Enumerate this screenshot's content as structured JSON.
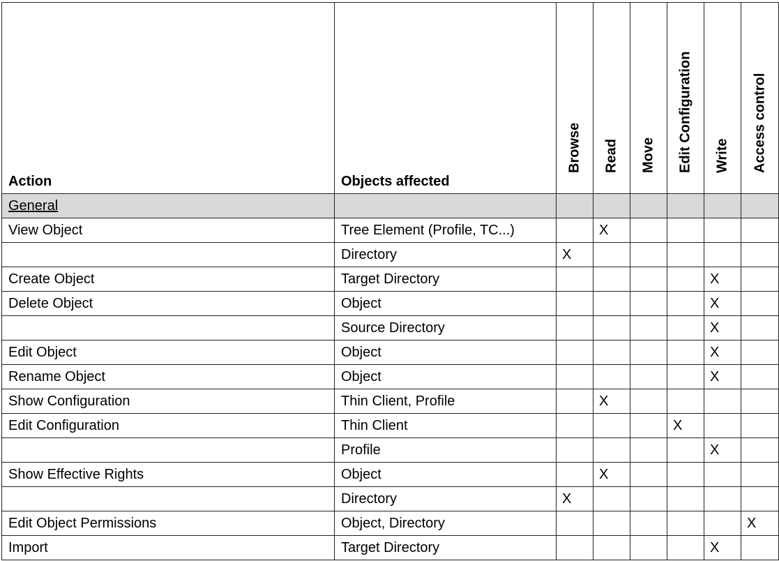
{
  "headers": {
    "action": "Action",
    "objects": "Objects affected",
    "rights": [
      "Browse",
      "Read",
      "Move",
      "Edit Configuration",
      "Write",
      "Access control"
    ]
  },
  "section": {
    "label": "General"
  },
  "rows": [
    {
      "action": "View Object",
      "object": "Tree Element (Profile, TC...)",
      "marks": [
        "",
        "X",
        "",
        "",
        "",
        ""
      ]
    },
    {
      "action": "",
      "object": "Directory",
      "marks": [
        "X",
        "",
        "",
        "",
        "",
        ""
      ]
    },
    {
      "action": "Create Object",
      "object": "Target Directory",
      "marks": [
        "",
        "",
        "",
        "",
        "X",
        ""
      ]
    },
    {
      "action": "Delete Object",
      "object": "Object",
      "marks": [
        "",
        "",
        "",
        "",
        "X",
        ""
      ]
    },
    {
      "action": "",
      "object": "Source Directory",
      "marks": [
        "",
        "",
        "",
        "",
        "X",
        ""
      ]
    },
    {
      "action": "Edit Object",
      "object": "Object",
      "marks": [
        "",
        "",
        "",
        "",
        "X",
        ""
      ]
    },
    {
      "action": "Rename Object",
      "object": "Object",
      "marks": [
        "",
        "",
        "",
        "",
        "X",
        ""
      ]
    },
    {
      "action": "Show Configuration",
      "object": "Thin Client, Profile",
      "marks": [
        "",
        "X",
        "",
        "",
        "",
        ""
      ]
    },
    {
      "action": "Edit Configuration",
      "object": "Thin Client",
      "marks": [
        "",
        "",
        "",
        "X",
        "",
        ""
      ]
    },
    {
      "action": "",
      "object": "Profile",
      "marks": [
        "",
        "",
        "",
        "",
        "X",
        ""
      ]
    },
    {
      "action": "Show Effective Rights",
      "object": "Object",
      "marks": [
        "",
        "X",
        "",
        "",
        "",
        ""
      ]
    },
    {
      "action": "",
      "object": "Directory",
      "marks": [
        "X",
        "",
        "",
        "",
        "",
        ""
      ]
    },
    {
      "action": "Edit Object Permissions",
      "object": "Object, Directory",
      "marks": [
        "",
        "",
        "",
        "",
        "",
        "X"
      ]
    },
    {
      "action": "Import",
      "object": "Target Directory",
      "marks": [
        "",
        "",
        "",
        "",
        "X",
        ""
      ]
    }
  ],
  "colors": {
    "section_bg": "#d9d9d9",
    "border": "#222222"
  }
}
